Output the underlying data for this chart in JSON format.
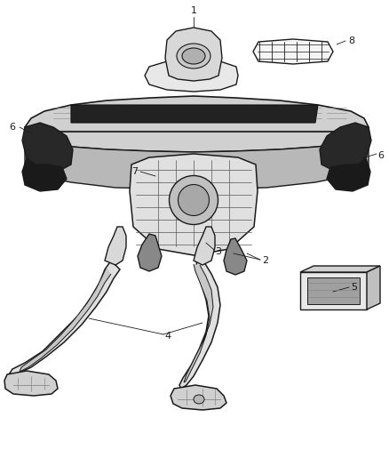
{
  "background_color": "#ffffff",
  "line_color": "#1a1a1a",
  "label_color": "#000000",
  "figsize": [
    4.38,
    5.33
  ],
  "dpi": 100,
  "shade_color": "#cccccc",
  "dark_color": "#555555"
}
